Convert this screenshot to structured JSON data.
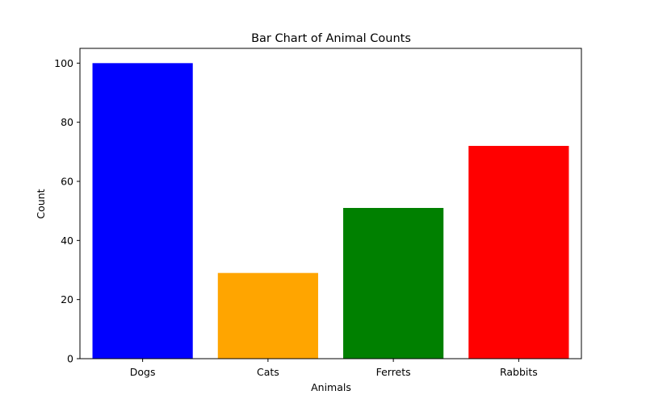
{
  "chart_data": {
    "type": "bar",
    "title": "Bar Chart of Animal Counts",
    "xlabel": "Animals",
    "ylabel": "Count",
    "categories": [
      "Dogs",
      "Cats",
      "Ferrets",
      "Rabbits"
    ],
    "values": [
      100,
      29,
      51,
      72
    ],
    "colors": [
      "#0000ff",
      "#ffa500",
      "#008000",
      "#ff0000"
    ],
    "ylim": [
      0,
      105
    ],
    "yticks": [
      0,
      20,
      40,
      60,
      80,
      100
    ],
    "grid": false,
    "legend": null
  }
}
